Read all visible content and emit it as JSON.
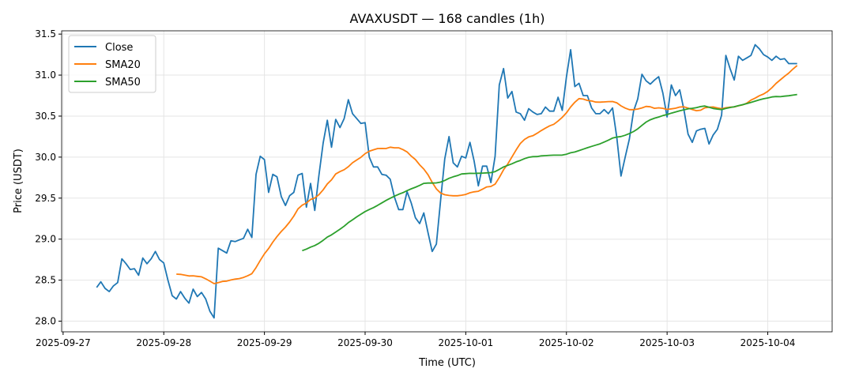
{
  "chart_data": {
    "type": "line",
    "title": "AVAXUSDT — 168 candles (1h)",
    "xlabel": "Time (UTC)",
    "ylabel": "Price (USDT)",
    "x_start": "2025-09-27T08:00:00Z",
    "x_step_hours": 1,
    "xlim_hours_from_2025_09_27": [
      -0.35,
      183.35
    ],
    "ylim": [
      27.87,
      31.54
    ],
    "grid": true,
    "legend_position": "top-left",
    "x_ticks": [
      {
        "hours": 0,
        "label": "2025-09-27"
      },
      {
        "hours": 24,
        "label": "2025-09-28"
      },
      {
        "hours": 48,
        "label": "2025-09-29"
      },
      {
        "hours": 72,
        "label": "2025-09-30"
      },
      {
        "hours": 96,
        "label": "2025-10-01"
      },
      {
        "hours": 120,
        "label": "2025-10-02"
      },
      {
        "hours": 144,
        "label": "2025-10-03"
      },
      {
        "hours": 168,
        "label": "2025-10-04"
      }
    ],
    "y_ticks": [
      {
        "value": 28.0,
        "label": "28.0"
      },
      {
        "value": 28.5,
        "label": "28.5"
      },
      {
        "value": 29.0,
        "label": "29.0"
      },
      {
        "value": 29.5,
        "label": "29.5"
      },
      {
        "value": 30.0,
        "label": "30.0"
      },
      {
        "value": 30.5,
        "label": "30.5"
      },
      {
        "value": 31.0,
        "label": "31.0"
      },
      {
        "value": 31.5,
        "label": "31.5"
      }
    ],
    "series": [
      {
        "name": "Close",
        "color": "#1f77b4",
        "values": [
          28.41,
          28.48,
          28.4,
          28.36,
          28.43,
          28.47,
          28.76,
          28.7,
          28.63,
          28.64,
          28.56,
          28.77,
          28.7,
          28.76,
          28.85,
          28.75,
          28.71,
          28.5,
          28.31,
          28.27,
          28.36,
          28.28,
          28.22,
          28.39,
          28.3,
          28.35,
          28.27,
          28.12,
          28.04,
          28.89,
          28.86,
          28.83,
          28.98,
          28.97,
          28.99,
          29.01,
          29.12,
          29.02,
          29.79,
          30.01,
          29.97,
          29.57,
          29.79,
          29.76,
          29.52,
          29.41,
          29.53,
          29.57,
          29.78,
          29.8,
          29.39,
          29.68,
          29.35,
          29.78,
          30.17,
          30.45,
          30.12,
          30.46,
          30.36,
          30.47,
          30.7,
          30.53,
          30.47,
          30.41,
          30.42,
          30.0,
          29.88,
          29.88,
          29.79,
          29.78,
          29.73,
          29.51,
          29.36,
          29.36,
          29.58,
          29.44,
          29.26,
          29.19,
          29.32,
          29.08,
          28.85,
          28.94,
          29.47,
          29.98,
          30.25,
          29.93,
          29.88,
          30.01,
          29.99,
          30.18,
          29.95,
          29.65,
          29.89,
          29.89,
          29.69,
          30.01,
          30.88,
          31.08,
          30.72,
          30.8,
          30.55,
          30.53,
          30.45,
          30.59,
          30.55,
          30.52,
          30.53,
          30.61,
          30.56,
          30.56,
          30.73,
          30.57,
          30.98,
          31.31,
          30.86,
          30.9,
          30.75,
          30.75,
          30.6,
          30.53,
          30.53,
          30.58,
          30.53,
          30.6,
          30.24,
          29.77,
          30.0,
          30.22,
          30.56,
          30.71,
          31.01,
          30.93,
          30.89,
          30.94,
          30.98,
          30.78,
          30.49,
          30.88,
          30.75,
          30.82,
          30.58,
          30.28,
          30.18,
          30.32,
          30.34,
          30.35,
          30.16,
          30.27,
          30.34,
          30.51,
          31.24,
          31.08,
          30.94,
          31.23,
          31.18,
          31.21,
          31.24,
          31.37,
          31.32,
          31.25,
          31.22,
          31.18,
          31.23,
          31.19,
          31.2,
          31.14,
          31.14,
          31.14
        ]
      },
      {
        "name": "SMA20",
        "color": "#ff7f0e",
        "window": 20
      },
      {
        "name": "SMA50",
        "color": "#2ca02c",
        "window": 50
      }
    ]
  }
}
